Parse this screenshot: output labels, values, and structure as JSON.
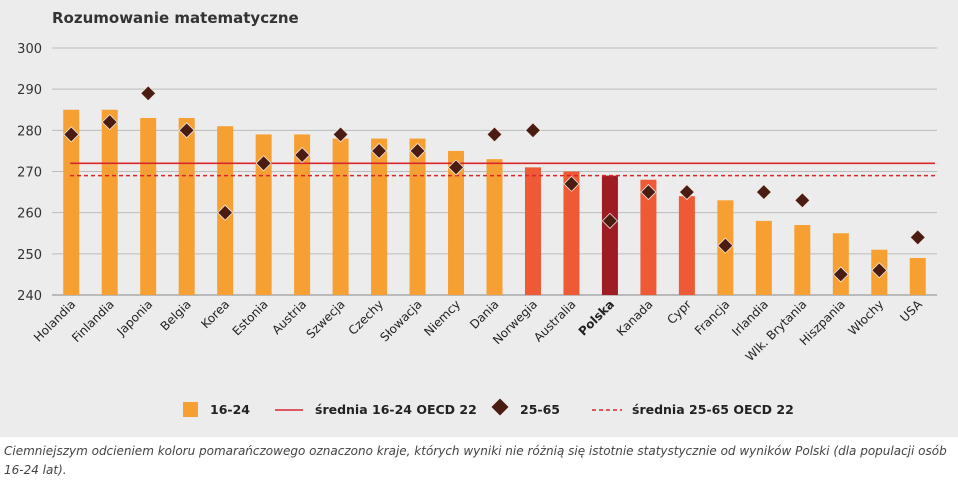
{
  "chart_data": {
    "type": "bar",
    "title": "Rozumowanie matematyczne",
    "ylim": [
      240,
      300
    ],
    "yticks": [
      240,
      250,
      260,
      270,
      280,
      290,
      300
    ],
    "grid": true,
    "legend_position": "bottom",
    "highlight_category": "Polska",
    "categories": [
      "Holandia",
      "Finlandia",
      "Japonia",
      "Belgia",
      "Korea",
      "Estonia",
      "Austria",
      "Szwecja",
      "Czechy",
      "Słowacja",
      "Niemcy",
      "Dania",
      "Norwegia",
      "Australia",
      "Polska",
      "Kanada",
      "Cypr",
      "Francja",
      "Irlandia",
      "Wlk. Brytania",
      "Hiszpania",
      "Włochy",
      "USA"
    ],
    "series": [
      {
        "name": "16-24",
        "kind": "bar",
        "values": [
          285,
          285,
          283,
          283,
          281,
          279,
          279,
          278,
          278,
          278,
          275,
          273,
          271,
          270,
          269,
          268,
          264,
          263,
          258,
          257,
          255,
          251,
          249
        ],
        "color_groups": [
          "light",
          "light",
          "light",
          "light",
          "light",
          "light",
          "light",
          "light",
          "light",
          "light",
          "light",
          "light",
          "mid",
          "mid",
          "dark",
          "mid",
          "mid",
          "light",
          "light",
          "light",
          "light",
          "light",
          "light"
        ]
      },
      {
        "name": "25-65",
        "kind": "marker",
        "values": [
          279,
          282,
          289,
          280,
          260,
          272,
          274,
          279,
          275,
          275,
          271,
          279,
          280,
          267,
          258,
          265,
          265,
          252,
          265,
          263,
          245,
          246,
          254
        ]
      }
    ],
    "reference_lines": [
      {
        "name": "średnia 16-24 OECD 22",
        "value": 272,
        "style": "solid"
      },
      {
        "name": "średnia 25-65 OECD 22",
        "value": 269,
        "style": "dashed"
      }
    ],
    "colors": {
      "light": "#f6a033",
      "mid": "#ee5a35",
      "dark": "#9e1d24",
      "marker": "#4b1c12",
      "line": "#d7262c",
      "highlight_label": "#e0252c"
    }
  },
  "legend": {
    "bar_label": "16-24",
    "line_label": "średnia 16-24 OECD 22",
    "marker_label": "25-65",
    "dashed_label": "średnia 25-65 OECD 22"
  },
  "caption": "Ciemniejszym odcieniem koloru pomarańczowego oznaczono kraje, których wyniki nie różnią się istotnie statystycznie od wyników Polski (dla populacji osób 16-24 lat)."
}
